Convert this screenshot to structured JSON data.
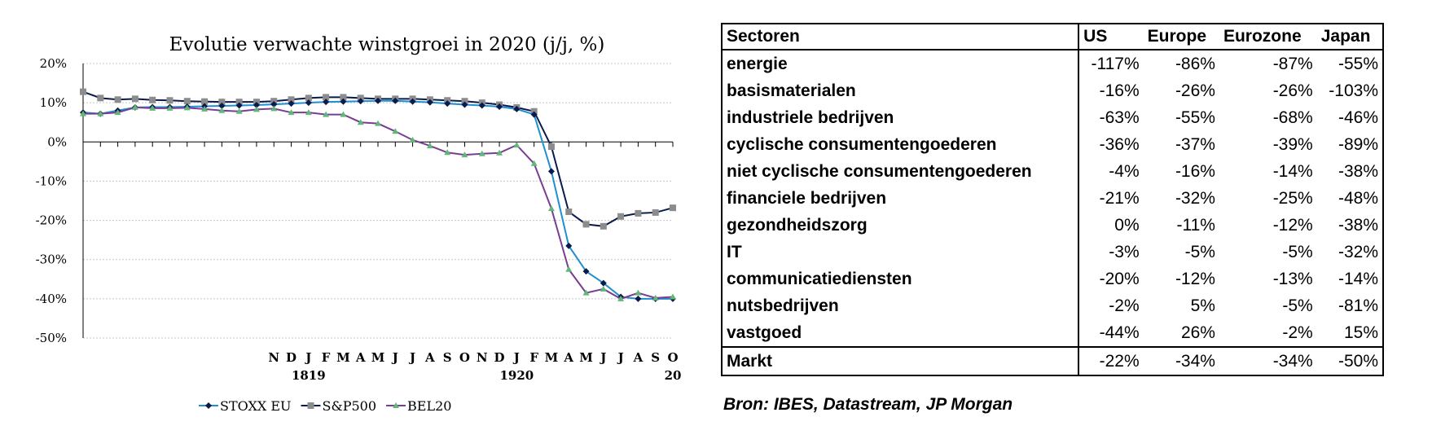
{
  "chart_data": {
    "type": "line",
    "title": "Evolutie verwachte winstgroei in 2020 (j/j, %)",
    "ylim": [
      -50,
      20
    ],
    "yticks": [
      "20%",
      "10%",
      "0%",
      "-10%",
      "-20%",
      "-30%",
      "-40%",
      "-50%"
    ],
    "ytick_values": [
      20,
      10,
      0,
      -10,
      -20,
      -30,
      -40,
      -50
    ],
    "grid": "horizontal",
    "x_month_labels": [
      "N",
      "D",
      "J",
      "F",
      "M",
      "A",
      "M",
      "J",
      "J",
      "A",
      "S",
      "O",
      "N",
      "D",
      "J",
      "F",
      "M",
      "A",
      "M",
      "J",
      "J",
      "A",
      "S",
      "O"
    ],
    "x_year_labels": [
      "1819",
      "1920",
      "20"
    ],
    "legend_position": "bottom",
    "series": [
      {
        "name": "STOXX EU",
        "color": "#0b1a4d",
        "marker": "diamond",
        "values": [
          7.5,
          7.2,
          8,
          8.8,
          8.9,
          8.9,
          9,
          9.1,
          9.2,
          9.3,
          9.4,
          9.6,
          9.8,
          10,
          10.2,
          10.3,
          10.4,
          10.5,
          10.5,
          10.3,
          10.1,
          9.8,
          9.5,
          9.3,
          9,
          8.4,
          7,
          -7.5,
          -26.5,
          -33,
          -36,
          -39.5,
          -40,
          -40,
          -40
        ]
      },
      {
        "name": "S&P500",
        "color": "#8c8c8c",
        "marker": "square",
        "values": [
          12.8,
          11.2,
          10.8,
          11,
          10.7,
          10.6,
          10.4,
          10.3,
          10.2,
          10.2,
          10.2,
          10.4,
          10.8,
          11.2,
          11.4,
          11.4,
          11.2,
          11,
          11,
          11,
          10.8,
          10.6,
          10.4,
          10,
          9.5,
          8.8,
          7.8,
          -1.2,
          -17.8,
          -21,
          -21.5,
          -19,
          -18.2,
          -18,
          -16.8
        ]
      },
      {
        "name": "BEL20",
        "color": "#7a3d91",
        "marker": "triangle",
        "values": [
          7.2,
          7.2,
          7.5,
          8.8,
          8.6,
          8.6,
          8.7,
          8.4,
          8,
          7.8,
          8.3,
          8.5,
          7.5,
          7.5,
          7,
          7,
          5,
          4.7,
          2.7,
          0.5,
          -1,
          -2.7,
          -3.3,
          -3,
          -2.8,
          -0.8,
          -5.5,
          -17,
          -32.5,
          -38.5,
          -37.5,
          -40,
          -38.5,
          -39.8,
          -39.5
        ]
      }
    ]
  },
  "table": {
    "headers": [
      "Sectoren",
      "US",
      "Europe",
      "Eurozone",
      "Japan"
    ],
    "rows": [
      {
        "sector": "energie",
        "us": "-117%",
        "europe": "-86%",
        "eurozone": "-87%",
        "japan": "-55%"
      },
      {
        "sector": "basismaterialen",
        "us": "-16%",
        "europe": "-26%",
        "eurozone": "-26%",
        "japan": "-103%"
      },
      {
        "sector": "industriele bedrijven",
        "us": "-63%",
        "europe": "-55%",
        "eurozone": "-68%",
        "japan": "-46%"
      },
      {
        "sector": "cyclische consumentengoederen",
        "us": "-36%",
        "europe": "-37%",
        "eurozone": "-39%",
        "japan": "-89%"
      },
      {
        "sector": "niet cyclische consumentengoederen",
        "us": "-4%",
        "europe": "-16%",
        "eurozone": "-14%",
        "japan": "-38%"
      },
      {
        "sector": "financiele bedrijven",
        "us": "-21%",
        "europe": "-32%",
        "eurozone": "-25%",
        "japan": "-48%"
      },
      {
        "sector": "gezondheidszorg",
        "us": "0%",
        "europe": "-11%",
        "eurozone": "-12%",
        "japan": "-38%"
      },
      {
        "sector": "IT",
        "us": "-3%",
        "europe": "-5%",
        "eurozone": "-5%",
        "japan": "-32%"
      },
      {
        "sector": "communicatiediensten",
        "us": "-20%",
        "europe": "-12%",
        "eurozone": "-13%",
        "japan": "-14%"
      },
      {
        "sector": "nutsbedrijven",
        "us": "-2%",
        "europe": "5%",
        "eurozone": "-5%",
        "japan": "-81%"
      },
      {
        "sector": "vastgoed",
        "us": "-44%",
        "europe": "26%",
        "eurozone": "-2%",
        "japan": "15%"
      }
    ],
    "total": {
      "sector": "Markt",
      "us": "-22%",
      "europe": "-34%",
      "eurozone": "-34%",
      "japan": "-50%"
    }
  },
  "source_note": "Bron: IBES, Datastream, JP Morgan"
}
